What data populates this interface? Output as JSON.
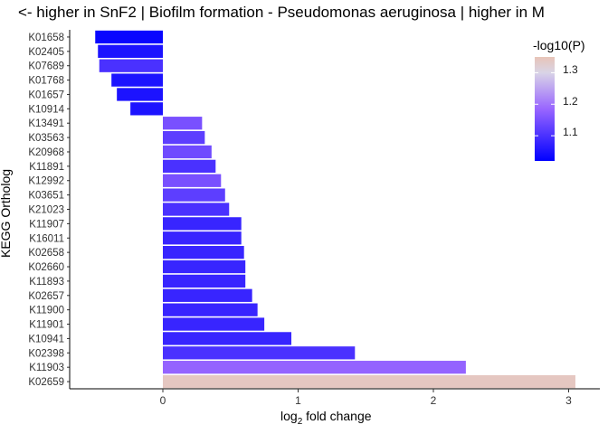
{
  "chart_data": {
    "type": "bar",
    "orientation": "horizontal",
    "title": "<- higher in SnF2 | Biofilm formation - Pseudomonas aeruginosa | higher in M",
    "xlabel_prefix": "log",
    "xlabel_sub": "2",
    "xlabel_suffix": " fold change",
    "ylabel": "KEGG Ortholog",
    "xlim": [
      -0.7,
      3.2
    ],
    "xticks": [
      "0",
      "1",
      "2",
      "3"
    ],
    "grid": false,
    "legend": {
      "title": "-log10(P)",
      "position": "top-right",
      "range": [
        1.02,
        1.35
      ],
      "ticks": [
        "1.3",
        "1.2",
        "1.1"
      ],
      "colors": {
        "low": "#0000ff",
        "mid": "#9966ff",
        "high": "#d9d4e6",
        "top": "#e8c4b8"
      }
    },
    "categories": [
      "K01658",
      "K02405",
      "K07689",
      "K01768",
      "K01657",
      "K10914",
      "K13491",
      "K03563",
      "K20968",
      "K11891",
      "K12992",
      "K03651",
      "K21023",
      "K11907",
      "K16011",
      "K02658",
      "K02660",
      "K11893",
      "K02657",
      "K11900",
      "K11901",
      "K10941",
      "K02398",
      "K11903",
      "K02659"
    ],
    "values": [
      -0.5,
      -0.48,
      -0.47,
      -0.38,
      -0.34,
      -0.24,
      0.29,
      0.31,
      0.36,
      0.39,
      0.43,
      0.46,
      0.49,
      0.58,
      0.58,
      0.6,
      0.61,
      0.61,
      0.66,
      0.7,
      0.75,
      0.95,
      1.42,
      2.24,
      3.05
    ],
    "pvalues": [
      1.03,
      1.05,
      1.1,
      1.05,
      1.05,
      1.05,
      1.15,
      1.12,
      1.14,
      1.1,
      1.15,
      1.12,
      1.1,
      1.08,
      1.08,
      1.08,
      1.08,
      1.08,
      1.08,
      1.08,
      1.08,
      1.08,
      1.1,
      1.18,
      1.34
    ]
  }
}
